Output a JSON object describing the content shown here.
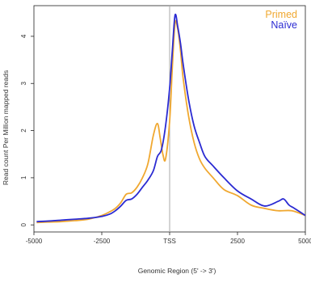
{
  "chart_data": {
    "type": "line",
    "xlabel": "Genomic Region (5' -> 3')",
    "ylabel": "Read count Per Million mapped reads",
    "xlim": [
      -5000,
      5000
    ],
    "ylim": [
      -0.15,
      4.65
    ],
    "xticks": [
      {
        "value": -5000,
        "label": "-5000"
      },
      {
        "value": -2500,
        "label": "-2500"
      },
      {
        "value": 0,
        "label": "TSS"
      },
      {
        "value": 2500,
        "label": "2500"
      },
      {
        "value": 5000,
        "label": "5000"
      }
    ],
    "yticks": [
      {
        "value": 0,
        "label": "0"
      },
      {
        "value": 1,
        "label": "1"
      },
      {
        "value": 2,
        "label": "2"
      },
      {
        "value": 3,
        "label": "3"
      },
      {
        "value": 4,
        "label": "4"
      }
    ],
    "vline": {
      "x": 0,
      "color": "#aaaaaa"
    },
    "grid": false,
    "legend_position": "top-right",
    "series": [
      {
        "name": "Primed",
        "color": "#f0a830",
        "x": [
          -4900,
          -4500,
          -4000,
          -3500,
          -3000,
          -2500,
          -2200,
          -2000,
          -1800,
          -1600,
          -1400,
          -1200,
          -1000,
          -800,
          -600,
          -450,
          -350,
          -250,
          -150,
          0,
          100,
          200,
          300,
          400,
          500,
          700,
          900,
          1100,
          1300,
          1600,
          2000,
          2500,
          3000,
          3500,
          4000,
          4500,
          5000
        ],
        "y": [
          0.05,
          0.06,
          0.07,
          0.09,
          0.12,
          0.2,
          0.28,
          0.35,
          0.47,
          0.65,
          0.68,
          0.8,
          1.0,
          1.3,
          1.9,
          2.15,
          1.85,
          1.5,
          1.4,
          2.2,
          3.35,
          4.28,
          4.15,
          3.7,
          3.1,
          2.3,
          1.75,
          1.4,
          1.2,
          1.0,
          0.75,
          0.62,
          0.42,
          0.35,
          0.3,
          0.3,
          0.2
        ]
      },
      {
        "name": "Naïve",
        "color": "#2b2bd2",
        "x": [
          -4900,
          -4500,
          -4000,
          -3500,
          -3000,
          -2500,
          -2200,
          -2000,
          -1800,
          -1600,
          -1400,
          -1200,
          -1000,
          -800,
          -600,
          -450,
          -300,
          -150,
          0,
          100,
          200,
          300,
          400,
          500,
          700,
          900,
          1100,
          1300,
          1600,
          2000,
          2500,
          3000,
          3500,
          4000,
          4200,
          4400,
          4600,
          5000
        ],
        "y": [
          0.07,
          0.08,
          0.1,
          0.12,
          0.14,
          0.18,
          0.23,
          0.3,
          0.4,
          0.52,
          0.55,
          0.65,
          0.8,
          0.95,
          1.15,
          1.45,
          1.6,
          2.1,
          2.9,
          3.7,
          4.45,
          4.2,
          3.85,
          3.4,
          2.65,
          2.1,
          1.75,
          1.45,
          1.25,
          1.0,
          0.72,
          0.55,
          0.4,
          0.5,
          0.55,
          0.42,
          0.35,
          0.2
        ]
      }
    ]
  }
}
